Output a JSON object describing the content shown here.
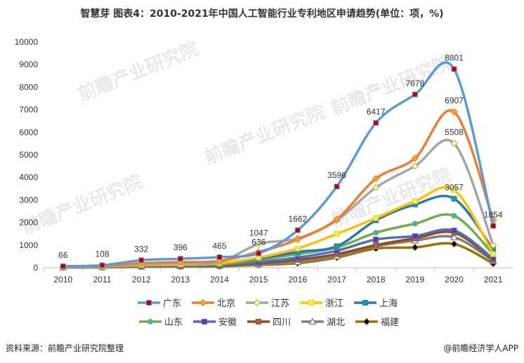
{
  "header": {
    "title": "智慧芽 图表4：2010-2021年中国人工智能行业专利地区申请趋势(单位：项，%)"
  },
  "footer": {
    "source_left": "资料来源：前瞻产业研究院整理",
    "source_right": "@前瞻经济学人APP"
  },
  "watermark": {
    "name": "前瞻产业研究院"
  },
  "chart_data": {
    "type": "line",
    "title": "智慧芽 图表4：2010-2021年中国人工智能行业专利地区申请趋势(单位：项，%)",
    "xlabel": "",
    "ylabel": "",
    "ylim": [
      0,
      10000
    ],
    "yticks": [
      0,
      1000,
      2000,
      3000,
      4000,
      5000,
      6000,
      7000,
      8000,
      9000,
      10000
    ],
    "categories": [
      "2010",
      "2011",
      "2012",
      "2013",
      "2014",
      "2015",
      "2016",
      "2017",
      "2018",
      "2019",
      "2020",
      "2021"
    ],
    "legend_position": "bottom",
    "grid": false,
    "series": [
      {
        "name": "广东",
        "color": "#5b9bd5",
        "marker": "square",
        "marker_color": "#c00000",
        "values": [
          66,
          108,
          332,
          396,
          465,
          636,
          1662,
          3596,
          6417,
          7678,
          8801,
          1854
        ],
        "labels": [
          "66",
          "108",
          "332",
          "396",
          "465",
          "636",
          "1662",
          "3596",
          "6417",
          "7678",
          "8801",
          "1854"
        ]
      },
      {
        "name": "北京",
        "color": "#ed7d31",
        "marker": "diamond",
        "marker_color": "#f5a623",
        "values": [
          40,
          80,
          200,
          250,
          300,
          700,
          1250,
          2150,
          3950,
          4850,
          6907,
          2100
        ],
        "labels": [
          "",
          "",
          "",
          "",
          "",
          "",
          "",
          "",
          "",
          "",
          "6907",
          ""
        ]
      },
      {
        "name": "江苏",
        "color": "#a5a5a5",
        "marker": "diamond",
        "marker_color": "#ffff66",
        "values": [
          30,
          60,
          150,
          200,
          250,
          1047,
          1300,
          2100,
          3550,
          4500,
          5508,
          1000
        ],
        "labels": [
          "",
          "",
          "",
          "",
          "",
          "1047",
          "",
          "",
          "",
          "",
          "5508",
          ""
        ]
      },
      {
        "name": "浙江",
        "color": "#ffc000",
        "marker": "square",
        "marker_color": "#ccff66",
        "values": [
          25,
          50,
          120,
          150,
          200,
          450,
          850,
          1500,
          2200,
          2950,
          3450,
          600
        ],
        "labels": [
          "",
          "",
          "",
          "",
          "",
          "",
          "",
          "",
          "",
          "",
          "",
          ""
        ]
      },
      {
        "name": "上海",
        "color": "#2e75b6",
        "marker": "square",
        "marker_color": "#1f9e89",
        "values": [
          20,
          50,
          110,
          150,
          200,
          400,
          700,
          950,
          2100,
          2800,
          3057,
          800
        ],
        "labels": [
          "",
          "",
          "",
          "",
          "",
          "",
          "",
          "",
          "",
          "",
          "3057",
          ""
        ]
      },
      {
        "name": "山东",
        "color": "#70ad47",
        "marker": "circle",
        "marker_color": "#3cb3c3",
        "values": [
          15,
          40,
          90,
          120,
          150,
          350,
          600,
          900,
          1550,
          1950,
          2300,
          600
        ],
        "labels": [
          "",
          "",
          "",
          "",
          "",
          "",
          "",
          "",
          "",
          "",
          "",
          ""
        ]
      },
      {
        "name": "安徽",
        "color": "#4472c4",
        "marker": "square",
        "marker_color": "#7030a0",
        "values": [
          10,
          30,
          70,
          90,
          120,
          250,
          450,
          750,
          1250,
          1400,
          1650,
          400
        ],
        "labels": [
          "",
          "",
          "",
          "",
          "",
          "",
          "",
          "",
          "",
          "",
          "",
          ""
        ]
      },
      {
        "name": "四川",
        "color": "#9e480e",
        "marker": "square",
        "marker_color": "#8c6e63",
        "values": [
          10,
          25,
          60,
          80,
          100,
          200,
          350,
          600,
          1000,
          1300,
          1550,
          350
        ],
        "labels": [
          "",
          "",
          "",
          "",
          "",
          "",
          "",
          "",
          "",
          "",
          "",
          ""
        ]
      },
      {
        "name": "湖北",
        "color": "#7f7f7f",
        "marker": "triangle",
        "marker_color": "#ffffff",
        "values": [
          8,
          20,
          50,
          60,
          80,
          150,
          250,
          500,
          950,
          1200,
          1350,
          300
        ],
        "labels": [
          "",
          "",
          "",
          "",
          "",
          "",
          "",
          "",
          "",
          "",
          "",
          ""
        ]
      },
      {
        "name": "福建",
        "color": "#997300",
        "marker": "diamond",
        "marker_color": "#000000",
        "values": [
          5,
          15,
          40,
          50,
          60,
          120,
          200,
          450,
          850,
          900,
          1050,
          180
        ],
        "labels": [
          "",
          "",
          "",
          "",
          "",
          "",
          "",
          "",
          "",
          "",
          "",
          ""
        ]
      }
    ]
  }
}
